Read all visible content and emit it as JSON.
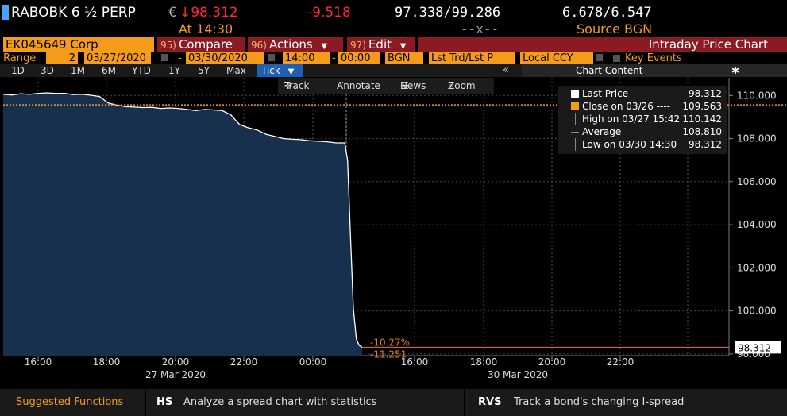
{
  "header": {
    "security": "RABOBK 6 ½  PERP",
    "currency": "€",
    "last_price": "↓98.312",
    "change": "-9.518",
    "bid_ask": "97.338/99.286",
    "yields": "6.678/6.547",
    "time_label": "At 14:30",
    "volume": "--x--",
    "source": "Source BGN"
  },
  "toolbar": {
    "ticker": "EK045649 Corp",
    "compare_num": "95)",
    "compare_label": "Compare",
    "actions_num": "96)",
    "actions_label": "Actions",
    "edit_num": "97)",
    "edit_label": "Edit",
    "title": "Intraday Price Chart"
  },
  "range": {
    "label": "Range",
    "count": "2",
    "start_date": "03/27/2020",
    "end_date": "03/30/2020",
    "start_time": "14:00",
    "end_time": "00:00",
    "source": "BGN",
    "field": "Lst Trd/Lst P",
    "currency": "Local CCY",
    "key_events": "Key Events"
  },
  "periods": [
    "1D",
    "3D",
    "1M",
    "6M",
    "YTD",
    "1Y",
    "5Y",
    "Max"
  ],
  "tick_label": "Tick",
  "chart_content_label": "Chart Content",
  "chart_tools": {
    "track": "Track",
    "annotate": "Annotate",
    "news": "News",
    "zoom": "Zoom"
  },
  "legend": [
    {
      "name": "Last Price",
      "value": "98.312",
      "color": "#ffffff"
    },
    {
      "name": "Close on 03/26 ----",
      "value": "109.563",
      "color": "#f59b1a"
    },
    {
      "name": "High on 03/27 15:42",
      "value": "110.142",
      "color": "#888888"
    },
    {
      "name": "Average",
      "value": "108.810",
      "color": "#888888"
    },
    {
      "name": "Low on 03/30 14:30",
      "value": "98.312",
      "color": "#888888"
    }
  ],
  "chart_data": {
    "type": "area",
    "y_ticks": [
      "110.000",
      "108.000",
      "106.000",
      "104.000",
      "102.000",
      "100.000",
      "98.000"
    ],
    "ylim": [
      97.7,
      110.6
    ],
    "x_tick_labels": [
      "16:00",
      "18:00",
      "20:00",
      "22:00",
      "00:00",
      "16:00",
      "18:00",
      "20:00",
      "22:00"
    ],
    "date_labels": [
      "27 Mar 2020",
      "30 Mar 2020"
    ],
    "last_price_tag": "98.312",
    "prev_close": 109.563,
    "pct_change_label": "-10.27%",
    "abs_change_label": "-11.251",
    "series": [
      {
        "name": "Last Price",
        "values": [
          110.05,
          110.02,
          110.08,
          110.05,
          110.1,
          110.12,
          110.09,
          110.1,
          110.04,
          110.06,
          110.01,
          109.95,
          109.65,
          109.55,
          109.48,
          109.46,
          109.44,
          109.45,
          109.4,
          109.42,
          109.4,
          109.35,
          109.3,
          109.35,
          109.33,
          109.3,
          109.1,
          108.65,
          108.5,
          108.4,
          108.2,
          108.1,
          108.0,
          107.97,
          107.95,
          107.9,
          107.88,
          107.85,
          107.8,
          107.8,
          107.0,
          103.5,
          100.1,
          98.7,
          98.4,
          98.312
        ]
      }
    ]
  },
  "bottom": {
    "suggested": "Suggested Functions",
    "items": [
      {
        "code": "HS",
        "desc": "Analyze a spread chart with statistics"
      },
      {
        "code": "RVS",
        "desc": "Track a bond's changing I-spread"
      }
    ]
  },
  "colors": {
    "accent_orange": "#f59b1a",
    "dark_red": "#8b1a22",
    "area_fill": "#17304e",
    "tick_blue": "#1f5fb0",
    "price_red": "#ff2a2a"
  }
}
